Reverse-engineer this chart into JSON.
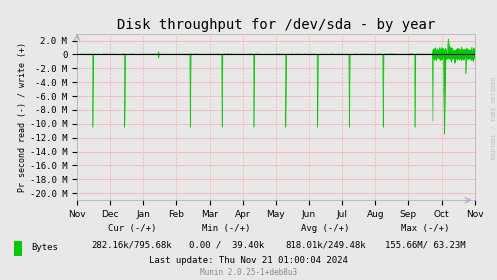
{
  "title": "Disk throughput for /dev/sda - by year",
  "ylabel": "Pr second read (-) / write (+)",
  "background_color": "#e8e8e8",
  "line_color": "#00cc00",
  "fill_color": "#00cc00",
  "ylim": [
    -21000000,
    3000000
  ],
  "yticks": [
    2000000,
    0,
    -2000000,
    -4000000,
    -6000000,
    -8000000,
    -10000000,
    -12000000,
    -14000000,
    -16000000,
    -18000000,
    -20000000
  ],
  "ytick_labels": [
    "2.0 M",
    "0",
    "-2.0 M",
    "-4.0 M",
    "-6.0 M",
    "-8.0 M",
    "-10.0 M",
    "-12.0 M",
    "-14.0 M",
    "-16.0 M",
    "-18.0 M",
    "-20.0 M"
  ],
  "xlabel_months": [
    "Nov",
    "Dec",
    "Jan",
    "Feb",
    "Mar",
    "Apr",
    "May",
    "Jun",
    "Jul",
    "Aug",
    "Sep",
    "Oct",
    "Nov"
  ],
  "rrdtool_label": "RRDTOOL / TOBI OETIKER",
  "legend_label": "Bytes",
  "cur_label": "Cur (-/+)",
  "cur_value": "282.16k/795.68k",
  "min_label": "Min (-/+)",
  "min_value": "0.00 /  39.40k",
  "avg_label": "Avg (-/+)",
  "avg_value": "818.01k/249.48k",
  "max_label": "Max (-/+)",
  "max_value": "155.66M/ 63.23M",
  "last_update": "Last update: Thu Nov 21 01:00:04 2024",
  "munin_version": "Munin 2.0.25-1+deb8u3",
  "title_fontsize": 10,
  "axis_fontsize": 6.5,
  "legend_fontsize": 6.5
}
